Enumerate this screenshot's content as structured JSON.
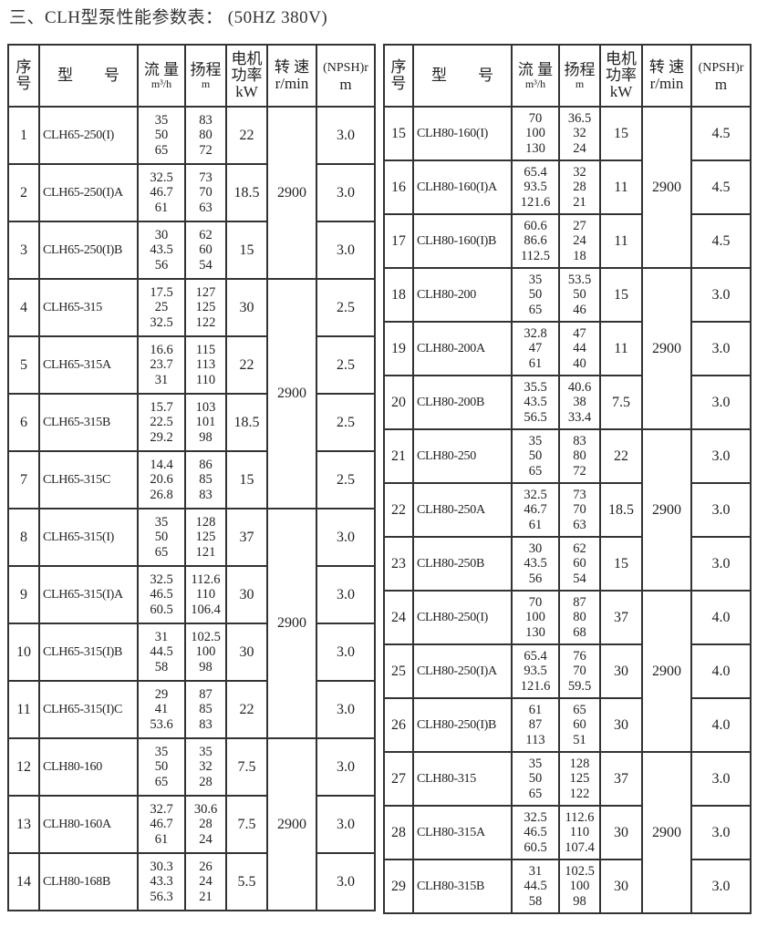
{
  "title": "三、CLH型泵性能参数表：  (50HZ 380V)",
  "headers": {
    "no": [
      "序",
      "号"
    ],
    "model": "型　　号",
    "flow": "流 量",
    "flow_unit": "m³/h",
    "head": "扬程",
    "head_unit": "m",
    "power": [
      "电机",
      "功率"
    ],
    "power_unit": "kW",
    "speed": "转 速",
    "speed_unit": "r/min",
    "npsh": "(NPSH)r",
    "npsh_unit": "m"
  },
  "left": {
    "speed_groups": [
      {
        "value": "2900",
        "rows": 3
      },
      {
        "value": "2900",
        "rows": 4
      },
      {
        "value": "2900",
        "rows": 4
      },
      {
        "value": "2900",
        "rows": 3
      }
    ],
    "rows": [
      {
        "no": "1",
        "model": "CLH65-250(I)",
        "flow": [
          "35",
          "50",
          "65"
        ],
        "head": [
          "83",
          "80",
          "72"
        ],
        "power": "22",
        "npsh": "3.0"
      },
      {
        "no": "2",
        "model": "CLH65-250(I)A",
        "flow": [
          "32.5",
          "46.7",
          "61"
        ],
        "head": [
          "73",
          "70",
          "63"
        ],
        "power": "18.5",
        "npsh": "3.0"
      },
      {
        "no": "3",
        "model": "CLH65-250(I)B",
        "flow": [
          "30",
          "43.5",
          "56"
        ],
        "head": [
          "62",
          "60",
          "54"
        ],
        "power": "15",
        "npsh": "3.0"
      },
      {
        "no": "4",
        "model": "CLH65-315",
        "flow": [
          "17.5",
          "25",
          "32.5"
        ],
        "head": [
          "127",
          "125",
          "122"
        ],
        "power": "30",
        "npsh": "2.5"
      },
      {
        "no": "5",
        "model": "CLH65-315A",
        "flow": [
          "16.6",
          "23.7",
          "31"
        ],
        "head": [
          "115",
          "113",
          "110"
        ],
        "power": "22",
        "npsh": "2.5"
      },
      {
        "no": "6",
        "model": "CLH65-315B",
        "flow": [
          "15.7",
          "22.5",
          "29.2"
        ],
        "head": [
          "103",
          "101",
          "98"
        ],
        "power": "18.5",
        "npsh": "2.5"
      },
      {
        "no": "7",
        "model": "CLH65-315C",
        "flow": [
          "14.4",
          "20.6",
          "26.8"
        ],
        "head": [
          "86",
          "85",
          "83"
        ],
        "power": "15",
        "npsh": "2.5"
      },
      {
        "no": "8",
        "model": "CLH65-315(I)",
        "flow": [
          "35",
          "50",
          "65"
        ],
        "head": [
          "128",
          "125",
          "121"
        ],
        "power": "37",
        "npsh": "3.0"
      },
      {
        "no": "9",
        "model": "CLH65-315(I)A",
        "flow": [
          "32.5",
          "46.5",
          "60.5"
        ],
        "head": [
          "112.6",
          "110",
          "106.4"
        ],
        "power": "30",
        "npsh": "3.0"
      },
      {
        "no": "10",
        "model": "CLH65-315(I)B",
        "flow": [
          "31",
          "44.5",
          "58"
        ],
        "head": [
          "102.5",
          "100",
          "98"
        ],
        "power": "30",
        "npsh": "3.0"
      },
      {
        "no": "11",
        "model": "CLH65-315(I)C",
        "flow": [
          "29",
          "41",
          "53.6"
        ],
        "head": [
          "87",
          "85",
          "83"
        ],
        "power": "22",
        "npsh": "3.0"
      },
      {
        "no": "12",
        "model": "CLH80-160",
        "flow": [
          "35",
          "50",
          "65"
        ],
        "head": [
          "35",
          "32",
          "28"
        ],
        "power": "7.5",
        "npsh": "3.0"
      },
      {
        "no": "13",
        "model": "CLH80-160A",
        "flow": [
          "32.7",
          "46.7",
          "61"
        ],
        "head": [
          "30.6",
          "28",
          "24"
        ],
        "power": "7.5",
        "npsh": "3.0"
      },
      {
        "no": "14",
        "model": "CLH80-168B",
        "flow": [
          "30.3",
          "43.3",
          "56.3"
        ],
        "head": [
          "26",
          "24",
          "21"
        ],
        "power": "5.5",
        "npsh": "3.0"
      }
    ]
  },
  "right": {
    "speed_groups": [
      {
        "value": "2900",
        "rows": 3
      },
      {
        "value": "2900",
        "rows": 3
      },
      {
        "value": "2900",
        "rows": 3
      },
      {
        "value": "2900",
        "rows": 3
      },
      {
        "value": "2900",
        "rows": 3
      }
    ],
    "rows": [
      {
        "no": "15",
        "model": "CLH80-160(I)",
        "flow": [
          "70",
          "100",
          "130"
        ],
        "head": [
          "36.5",
          "32",
          "24"
        ],
        "power": "15",
        "npsh": "4.5"
      },
      {
        "no": "16",
        "model": "CLH80-160(I)A",
        "flow": [
          "65.4",
          "93.5",
          "121.6"
        ],
        "head": [
          "32",
          "28",
          "21"
        ],
        "power": "11",
        "npsh": "4.5"
      },
      {
        "no": "17",
        "model": "CLH80-160(I)B",
        "flow": [
          "60.6",
          "86.6",
          "112.5"
        ],
        "head": [
          "27",
          "24",
          "18"
        ],
        "power": "11",
        "npsh": "4.5"
      },
      {
        "no": "18",
        "model": "CLH80-200",
        "flow": [
          "35",
          "50",
          "65"
        ],
        "head": [
          "53.5",
          "50",
          "46"
        ],
        "power": "15",
        "npsh": "3.0"
      },
      {
        "no": "19",
        "model": "CLH80-200A",
        "flow": [
          "32.8",
          "47",
          "61"
        ],
        "head": [
          "47",
          "44",
          "40"
        ],
        "power": "11",
        "npsh": "3.0"
      },
      {
        "no": "20",
        "model": "CLH80-200B",
        "flow": [
          "35.5",
          "43.5",
          "56.5"
        ],
        "head": [
          "40.6",
          "38",
          "33.4"
        ],
        "power": "7.5",
        "npsh": "3.0"
      },
      {
        "no": "21",
        "model": "CLH80-250",
        "flow": [
          "35",
          "50",
          "65"
        ],
        "head": [
          "83",
          "80",
          "72"
        ],
        "power": "22",
        "npsh": "3.0"
      },
      {
        "no": "22",
        "model": "CLH80-250A",
        "flow": [
          "32.5",
          "46.7",
          "61"
        ],
        "head": [
          "73",
          "70",
          "63"
        ],
        "power": "18.5",
        "npsh": "3.0"
      },
      {
        "no": "23",
        "model": "CLH80-250B",
        "flow": [
          "30",
          "43.5",
          "56"
        ],
        "head": [
          "62",
          "60",
          "54"
        ],
        "power": "15",
        "npsh": "3.0"
      },
      {
        "no": "24",
        "model": "CLH80-250(I)",
        "flow": [
          "70",
          "100",
          "130"
        ],
        "head": [
          "87",
          "80",
          "68"
        ],
        "power": "37",
        "npsh": "4.0"
      },
      {
        "no": "25",
        "model": "CLH80-250(I)A",
        "flow": [
          "65.4",
          "93.5",
          "121.6"
        ],
        "head": [
          "76",
          "70",
          "59.5"
        ],
        "power": "30",
        "npsh": "4.0"
      },
      {
        "no": "26",
        "model": "CLH80-250(I)B",
        "flow": [
          "61",
          "87",
          "113"
        ],
        "head": [
          "65",
          "60",
          "51"
        ],
        "power": "30",
        "npsh": "4.0"
      },
      {
        "no": "27",
        "model": "CLH80-315",
        "flow": [
          "35",
          "50",
          "65"
        ],
        "head": [
          "128",
          "125",
          "122"
        ],
        "power": "37",
        "npsh": "3.0"
      },
      {
        "no": "28",
        "model": "CLH80-315A",
        "flow": [
          "32.5",
          "46.5",
          "60.5"
        ],
        "head": [
          "112.6",
          "110",
          "107.4"
        ],
        "power": "30",
        "npsh": "3.0"
      },
      {
        "no": "29",
        "model": "CLH80-315B",
        "flow": [
          "31",
          "44.5",
          "58"
        ],
        "head": [
          "102.5",
          "100",
          "98"
        ],
        "power": "30",
        "npsh": "3.0"
      }
    ]
  }
}
